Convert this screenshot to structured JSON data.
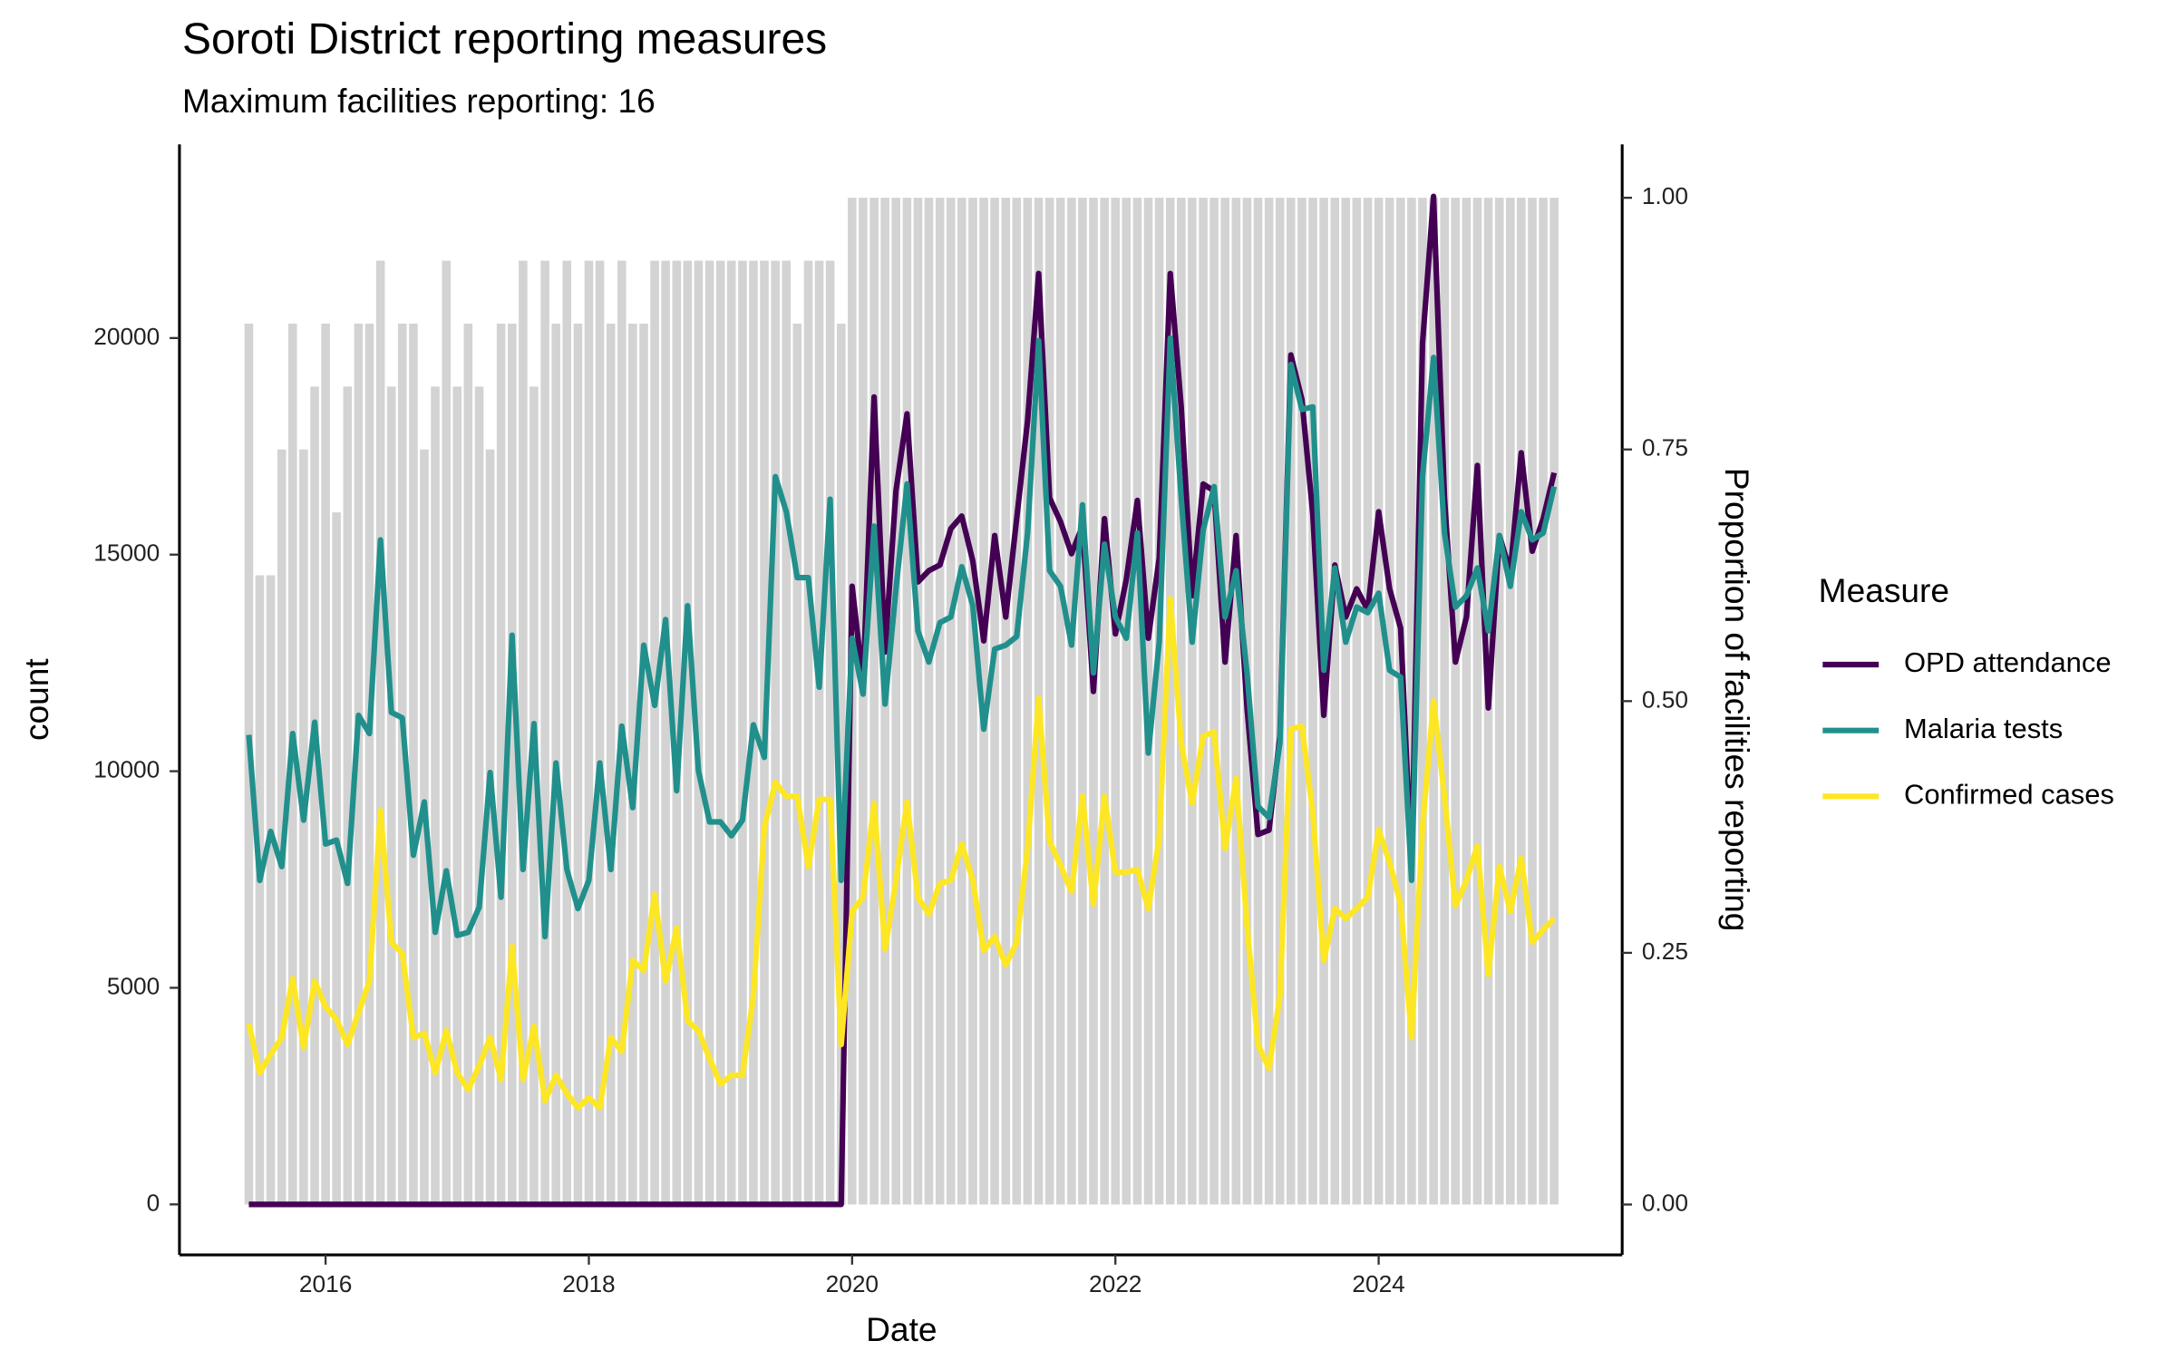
{
  "chart_data": {
    "type": "line",
    "title": "Soroti District reporting measures",
    "subtitle": "Maximum facilities reporting: 16",
    "x_label": "Date",
    "y_label": "count",
    "y2_label": "Proportion of facilities reporting",
    "legend_title": "Measure",
    "legend_position": "right",
    "xlim": [
      2014.89,
      2025.85
    ],
    "xticks": [
      2016,
      2018,
      2020,
      2022,
      2024
    ],
    "ylim": [
      -1165,
      24470
    ],
    "yticks": [
      0,
      5000,
      10000,
      15000,
      20000
    ],
    "y2lim": [
      -0.05,
      1.053
    ],
    "y2ticks": [
      {
        "value": 0,
        "label": "0.00"
      },
      0.25,
      {
        "value": 0.5,
        "label": "0.50"
      },
      0.75,
      {
        "value": 1,
        "label": "1.00"
      }
    ],
    "x": [
      2015.417,
      2015.5,
      2015.583,
      2015.667,
      2015.75,
      2015.833,
      2015.917,
      2016,
      2016.083,
      2016.167,
      2016.25,
      2016.333,
      2016.417,
      2016.5,
      2016.583,
      2016.667,
      2016.75,
      2016.833,
      2016.917,
      2017,
      2017.083,
      2017.167,
      2017.25,
      2017.333,
      2017.417,
      2017.5,
      2017.583,
      2017.667,
      2017.75,
      2017.833,
      2017.917,
      2018,
      2018.083,
      2018.167,
      2018.25,
      2018.333,
      2018.417,
      2018.5,
      2018.583,
      2018.667,
      2018.75,
      2018.833,
      2018.917,
      2019,
      2019.083,
      2019.167,
      2019.25,
      2019.333,
      2019.417,
      2019.5,
      2019.583,
      2019.667,
      2019.75,
      2019.833,
      2019.917,
      2020,
      2020.083,
      2020.167,
      2020.25,
      2020.333,
      2020.417,
      2020.5,
      2020.583,
      2020.667,
      2020.75,
      2020.833,
      2020.917,
      2021,
      2021.083,
      2021.167,
      2021.25,
      2021.333,
      2021.417,
      2021.5,
      2021.583,
      2021.667,
      2021.75,
      2021.833,
      2021.917,
      2022,
      2022.083,
      2022.167,
      2022.25,
      2022.333,
      2022.417,
      2022.5,
      2022.583,
      2022.667,
      2022.75,
      2022.833,
      2022.917,
      2023,
      2023.083,
      2023.167,
      2023.25,
      2023.333,
      2023.417,
      2023.5,
      2023.583,
      2023.667,
      2023.75,
      2023.833,
      2023.917,
      2024,
      2024.083,
      2024.167,
      2024.25,
      2024.333,
      2024.417,
      2024.5,
      2024.583,
      2024.667,
      2024.75,
      2024.833,
      2024.917,
      2025,
      2025.083,
      2025.167,
      2025.25,
      2025.333
    ],
    "bars": {
      "type": "bar",
      "axis": "y2",
      "color": "#d3d3d3",
      "values": [
        0.875,
        0.625,
        0.625,
        0.75,
        0.875,
        0.75,
        0.8125,
        0.875,
        0.6875,
        0.8125,
        0.875,
        0.875,
        0.9375,
        0.8125,
        0.875,
        0.875,
        0.75,
        0.8125,
        0.9375,
        0.8125,
        0.875,
        0.8125,
        0.75,
        0.875,
        0.875,
        0.9375,
        0.8125,
        0.9375,
        0.875,
        0.9375,
        0.875,
        0.9375,
        0.9375,
        0.875,
        0.9375,
        0.875,
        0.875,
        0.9375,
        0.9375,
        0.9375,
        0.9375,
        0.9375,
        0.9375,
        0.9375,
        0.9375,
        0.9375,
        0.9375,
        0.9375,
        0.9375,
        0.9375,
        0.875,
        0.9375,
        0.9375,
        0.9375,
        0.875,
        1,
        1,
        1,
        1,
        1,
        1,
        1,
        1,
        1,
        1,
        1,
        1,
        1,
        1,
        1,
        1,
        1,
        1,
        1,
        1,
        1,
        1,
        1,
        1,
        1,
        1,
        1,
        1,
        1,
        1,
        1,
        1,
        1,
        1,
        1,
        1,
        1,
        1,
        1,
        1,
        1,
        1,
        1,
        1,
        1,
        1,
        1,
        1,
        1,
        1,
        1,
        1,
        1,
        1,
        1,
        1,
        1,
        1,
        1,
        1,
        1,
        1,
        1,
        1,
        1
      ]
    },
    "series": [
      {
        "name": "OPD attendance",
        "color": "#440154",
        "values": [
          0,
          0,
          0,
          0,
          0,
          0,
          0,
          0,
          0,
          0,
          0,
          0,
          0,
          0,
          0,
          0,
          0,
          0,
          0,
          0,
          0,
          0,
          0,
          0,
          0,
          0,
          0,
          0,
          0,
          0,
          0,
          0,
          0,
          0,
          0,
          0,
          0,
          0,
          0,
          0,
          0,
          0,
          0,
          0,
          0,
          0,
          0,
          0,
          0,
          0,
          0,
          0,
          0,
          0,
          0,
          14270,
          12040,
          18640,
          12750,
          16470,
          18250,
          14370,
          14630,
          14760,
          15600,
          15890,
          14850,
          13010,
          15440,
          13560,
          15830,
          18090,
          21490,
          16310,
          15760,
          15020,
          15660,
          11840,
          15830,
          13170,
          14430,
          16250,
          13070,
          14920,
          21490,
          18410,
          14050,
          16630,
          16470,
          12520,
          15440,
          11460,
          8540,
          8640,
          10810,
          19610,
          18580,
          15920,
          11290,
          14760,
          13560,
          14210,
          13720,
          15990,
          14210,
          13300,
          7730,
          19870,
          23270,
          16310,
          12520,
          13560,
          17060,
          11460,
          15440,
          14600,
          17350,
          15080,
          15830,
          16890
        ]
      },
      {
        "name": "Malaria tests",
        "color": "#21908c",
        "values": [
          10840,
          7480,
          8610,
          7800,
          10870,
          8870,
          11130,
          8320,
          8410,
          7410,
          11290,
          10870,
          15340,
          11360,
          11230,
          8060,
          9290,
          6280,
          7700,
          6210,
          6280,
          6860,
          9970,
          7090,
          13140,
          7730,
          11100,
          6180,
          10190,
          7730,
          6830,
          7480,
          10190,
          7730,
          11040,
          9160,
          12910,
          11520,
          13500,
          9550,
          13820,
          10000,
          8830,
          8830,
          8510,
          8870,
          11070,
          10320,
          16800,
          15990,
          14470,
          14470,
          11940,
          16280,
          7480,
          13070,
          11780,
          15660,
          11550,
          14210,
          16630,
          13240,
          12520,
          13430,
          13560,
          14720,
          13820,
          10970,
          12820,
          12910,
          13110,
          15500,
          19940,
          14630,
          14270,
          12910,
          16150,
          12270,
          15240,
          13560,
          13070,
          15500,
          10420,
          12980,
          20000,
          16310,
          12980,
          15570,
          16570,
          13560,
          14630,
          12270,
          9190,
          8930,
          10650,
          19390,
          18350,
          18410,
          12330,
          14690,
          12980,
          13790,
          13660,
          14110,
          12330,
          12170,
          7480,
          16800,
          19550,
          15500,
          13790,
          14050,
          14690,
          13240,
          15440,
          14270,
          15990,
          15340,
          15500,
          16570
        ]
      },
      {
        "name": "Confirmed cases",
        "color": "#fde725",
        "values": [
          4170,
          3040,
          3460,
          3850,
          5210,
          3620,
          5150,
          4560,
          4270,
          3690,
          4430,
          5150,
          9090,
          6050,
          5790,
          3850,
          3950,
          3040,
          4010,
          3040,
          2650,
          3200,
          3850,
          2880,
          5950,
          2880,
          4110,
          2390,
          2980,
          2560,
          2230,
          2460,
          2230,
          3850,
          3530,
          5630,
          5400,
          7150,
          5150,
          6380,
          4240,
          4010,
          3370,
          2780,
          2980,
          2980,
          4820,
          8710,
          9740,
          9420,
          9420,
          7800,
          9350,
          9350,
          3690,
          6760,
          7090,
          9260,
          5890,
          7480,
          9290,
          7090,
          6700,
          7410,
          7480,
          8320,
          7480,
          5860,
          6180,
          5530,
          6050,
          8220,
          11680,
          8380,
          7830,
          7220,
          9420,
          6930,
          9420,
          7670,
          7670,
          7730,
          6830,
          8450,
          13980,
          10650,
          9260,
          10810,
          10910,
          8220,
          9840,
          6440,
          3690,
          3140,
          4820,
          10970,
          11040,
          9030,
          5630,
          6830,
          6600,
          6830,
          7090,
          8640,
          7900,
          6930,
          3850,
          8710,
          11620,
          9420,
          6890,
          7480,
          8280,
          5310,
          7800,
          6760,
          7990,
          6050,
          6340,
          6600
        ]
      }
    ]
  }
}
